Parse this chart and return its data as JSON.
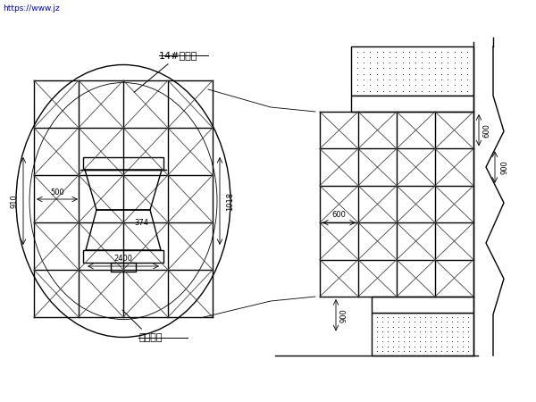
{
  "bg_color": "#ffffff",
  "line_color": "#000000",
  "thin_color": "#444444",
  "text_color": "#000000",
  "link_color": "#0000cc",
  "label_14_ibeam": "14#工字钢",
  "label_tunnel_lining": "洞门衬砌",
  "dim_910": "910",
  "dim_500": "500",
  "dim_1018": "1018",
  "dim_374": "374",
  "dim_2400": "2400",
  "dim_600_r": "600",
  "dim_900_r": "900",
  "dim_600_h": "600",
  "dim_900_bot": "900",
  "link_text": "https://www.jz",
  "lw_main": 1.0,
  "lw_thin": 0.6,
  "lw_thick": 1.5
}
